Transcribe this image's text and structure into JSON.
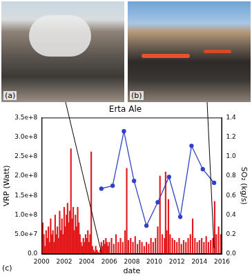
{
  "photos": [
    {
      "label": "(a)"
    },
    {
      "label": "(b)"
    }
  ],
  "chart_data": {
    "type": "bar",
    "title": "Erta Ale",
    "panel_label": "(c)",
    "xlabel": "date",
    "ylabel": "VRP (Watt)",
    "y2label": "SO₂ (kg/s)",
    "grid": false,
    "xlim": [
      2000,
      2016
    ],
    "xticks": [
      2000,
      2002,
      2004,
      2006,
      2008,
      2010,
      2012,
      2014,
      2016
    ],
    "ylim": [
      0,
      350000000
    ],
    "yticks": [
      {
        "value": 0,
        "label": "0.0"
      },
      {
        "value": 50000000,
        "label": "5.0e+7"
      },
      {
        "value": 100000000,
        "label": "1.0e+8"
      },
      {
        "value": 150000000,
        "label": "1.5e+8"
      },
      {
        "value": 200000000,
        "label": "2.0e+8"
      },
      {
        "value": 250000000,
        "label": "2.5e+8"
      },
      {
        "value": 300000000,
        "label": "3.0e+8"
      },
      {
        "value": 350000000,
        "label": "3.5e+8"
      }
    ],
    "y2lim": [
      0,
      1.4
    ],
    "y2ticks": [
      {
        "value": 0,
        "label": "0.0"
      },
      0.2,
      0.4,
      0.6,
      0.8,
      {
        "value": 1,
        "label": "1.0"
      },
      1.2,
      1.4
    ],
    "series": [
      {
        "type": "bar",
        "color": "#e3191c",
        "axis": "y",
        "x": [
          2000.0,
          2000.1,
          2000.2,
          2000.3,
          2000.4,
          2000.5,
          2000.6,
          2000.7,
          2000.8,
          2000.9,
          2001.0,
          2001.1,
          2001.2,
          2001.3,
          2001.4,
          2001.5,
          2001.6,
          2001.7,
          2001.8,
          2001.9,
          2002.0,
          2002.1,
          2002.2,
          2002.3,
          2002.4,
          2002.5,
          2002.6,
          2002.7,
          2002.8,
          2002.9,
          2003.0,
          2003.1,
          2003.2,
          2003.3,
          2003.4,
          2003.5,
          2003.6,
          2003.7,
          2003.8,
          2003.9,
          2004.0,
          2004.1,
          2004.2,
          2004.3,
          2004.4,
          2004.5,
          2004.6,
          2004.7,
          2004.8,
          2004.9,
          2005.0,
          2005.1,
          2005.2,
          2005.3,
          2005.4,
          2005.5,
          2005.6,
          2005.7,
          2005.8,
          2005.9,
          2006.0,
          2006.2,
          2006.4,
          2006.6,
          2006.8,
          2007.0,
          2007.2,
          2007.4,
          2007.55,
          2007.7,
          2007.9,
          2008.1,
          2008.3,
          2008.5,
          2008.7,
          2008.9,
          2009.1,
          2009.3,
          2009.5,
          2009.7,
          2009.9,
          2010.1,
          2010.3,
          2010.5,
          2010.7,
          2010.9,
          2011.0,
          2011.1,
          2011.25,
          2011.4,
          2011.6,
          2011.8,
          2012.0,
          2012.2,
          2012.4,
          2012.6,
          2012.8,
          2013.0,
          2013.2,
          2013.4,
          2013.6,
          2013.8,
          2014.0,
          2014.2,
          2014.4,
          2014.6,
          2014.8,
          2015.0,
          2015.2,
          2015.35,
          2015.5,
          2015.7,
          2015.9
        ],
        "values": [
          30000000,
          80000000,
          50000000,
          20000000,
          60000000,
          40000000,
          70000000,
          30000000,
          90000000,
          50000000,
          60000000,
          30000000,
          100000000,
          50000000,
          70000000,
          40000000,
          110000000,
          60000000,
          90000000,
          50000000,
          120000000,
          70000000,
          100000000,
          130000000,
          80000000,
          110000000,
          270000000,
          90000000,
          120000000,
          60000000,
          100000000,
          70000000,
          120000000,
          80000000,
          50000000,
          30000000,
          20000000,
          40000000,
          30000000,
          50000000,
          40000000,
          60000000,
          30000000,
          50000000,
          262000000,
          20000000,
          10000000,
          5000000,
          20000000,
          10000000,
          5000000,
          2000000,
          10000000,
          30000000,
          20000000,
          35000000,
          25000000,
          40000000,
          30000000,
          20000000,
          30000000,
          40000000,
          25000000,
          50000000,
          30000000,
          40000000,
          30000000,
          60000000,
          220000000,
          35000000,
          40000000,
          30000000,
          45000000,
          25000000,
          35000000,
          30000000,
          20000000,
          30000000,
          25000000,
          40000000,
          30000000,
          40000000,
          70000000,
          200000000,
          50000000,
          40000000,
          210000000,
          60000000,
          140000000,
          50000000,
          40000000,
          35000000,
          30000000,
          40000000,
          25000000,
          35000000,
          30000000,
          40000000,
          50000000,
          90000000,
          40000000,
          30000000,
          35000000,
          40000000,
          30000000,
          45000000,
          30000000,
          35000000,
          40000000,
          135000000,
          50000000,
          70000000,
          50000000
        ]
      },
      {
        "type": "line",
        "color": "#3040c8",
        "axis": "y2",
        "marker": "circle",
        "line_style": "solid",
        "x": [
          2005.3,
          2006.3,
          2007.3,
          2008.2,
          2009.3,
          2010.3,
          2011.3,
          2012.3,
          2013.3,
          2014.3,
          2015.3
        ],
        "values": [
          0.67,
          0.7,
          1.26,
          0.75,
          0.29,
          0.53,
          0.79,
          0.38,
          1.11,
          0.87,
          0.73
        ]
      }
    ]
  }
}
